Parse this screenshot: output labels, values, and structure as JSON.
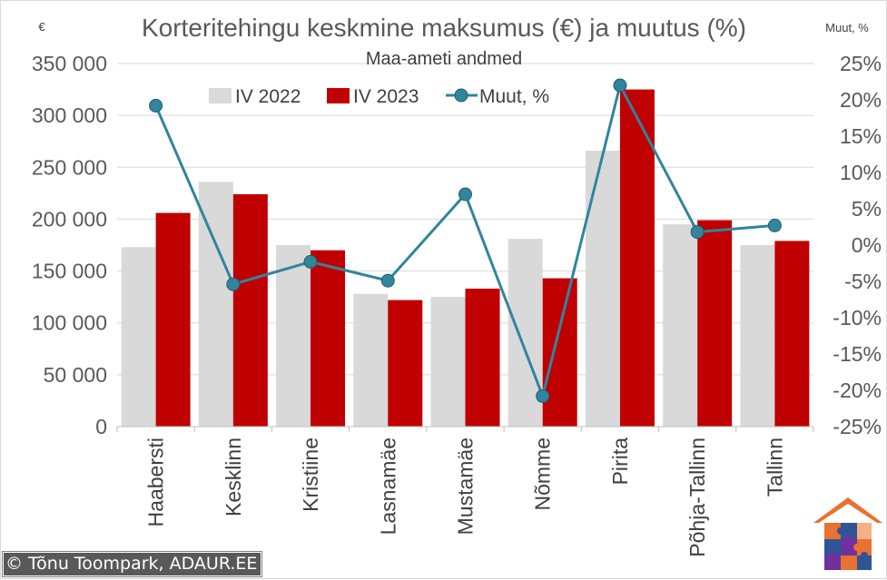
{
  "chart_data": {
    "type": "bar",
    "title": "Korteritehingu keskmine maksumus (€) ja muutus (%)",
    "subtitle": "Maa-ameti andmed",
    "ylabel": "€",
    "y2label": "Muut, %",
    "categories": [
      "Haabersti",
      "Kesklinn",
      "Kristiine",
      "Lasnamäe",
      "Mustamäe",
      "Nõmme",
      "Pirita",
      "Põhja-Tallinn",
      "Tallinn"
    ],
    "series": [
      {
        "name": "IV 2022",
        "type": "bar",
        "axis": "left",
        "color": "#d9d9d9",
        "values": [
          173000,
          236000,
          175000,
          128000,
          125000,
          181000,
          266000,
          195000,
          175000
        ]
      },
      {
        "name": "IV 2023",
        "type": "bar",
        "axis": "left",
        "color": "#c00000",
        "values": [
          206000,
          224000,
          170000,
          122000,
          133000,
          143000,
          325000,
          199000,
          179000
        ]
      },
      {
        "name": "Muut, %",
        "type": "line",
        "axis": "right",
        "color": "#31859c",
        "values": [
          19.2,
          -5.4,
          -2.3,
          -4.9,
          7.0,
          -20.8,
          22.0,
          1.8,
          2.7
        ]
      }
    ],
    "ylim": [
      0,
      350000
    ],
    "yticks": [
      "0",
      "50 000",
      "100 000",
      "150 000",
      "200 000",
      "250 000",
      "300 000",
      "350 000"
    ],
    "y2lim": [
      -25,
      25
    ],
    "y2ticks": [
      "-25%",
      "-20%",
      "-15%",
      "-10%",
      "-5%",
      "0%",
      "5%",
      "10%",
      "15%",
      "20%",
      "25%"
    ],
    "grid": true,
    "legend": "top-center"
  },
  "credit": "© Tõnu Toompark, ADAUR.EE",
  "logo": "house-puzzle-icon"
}
